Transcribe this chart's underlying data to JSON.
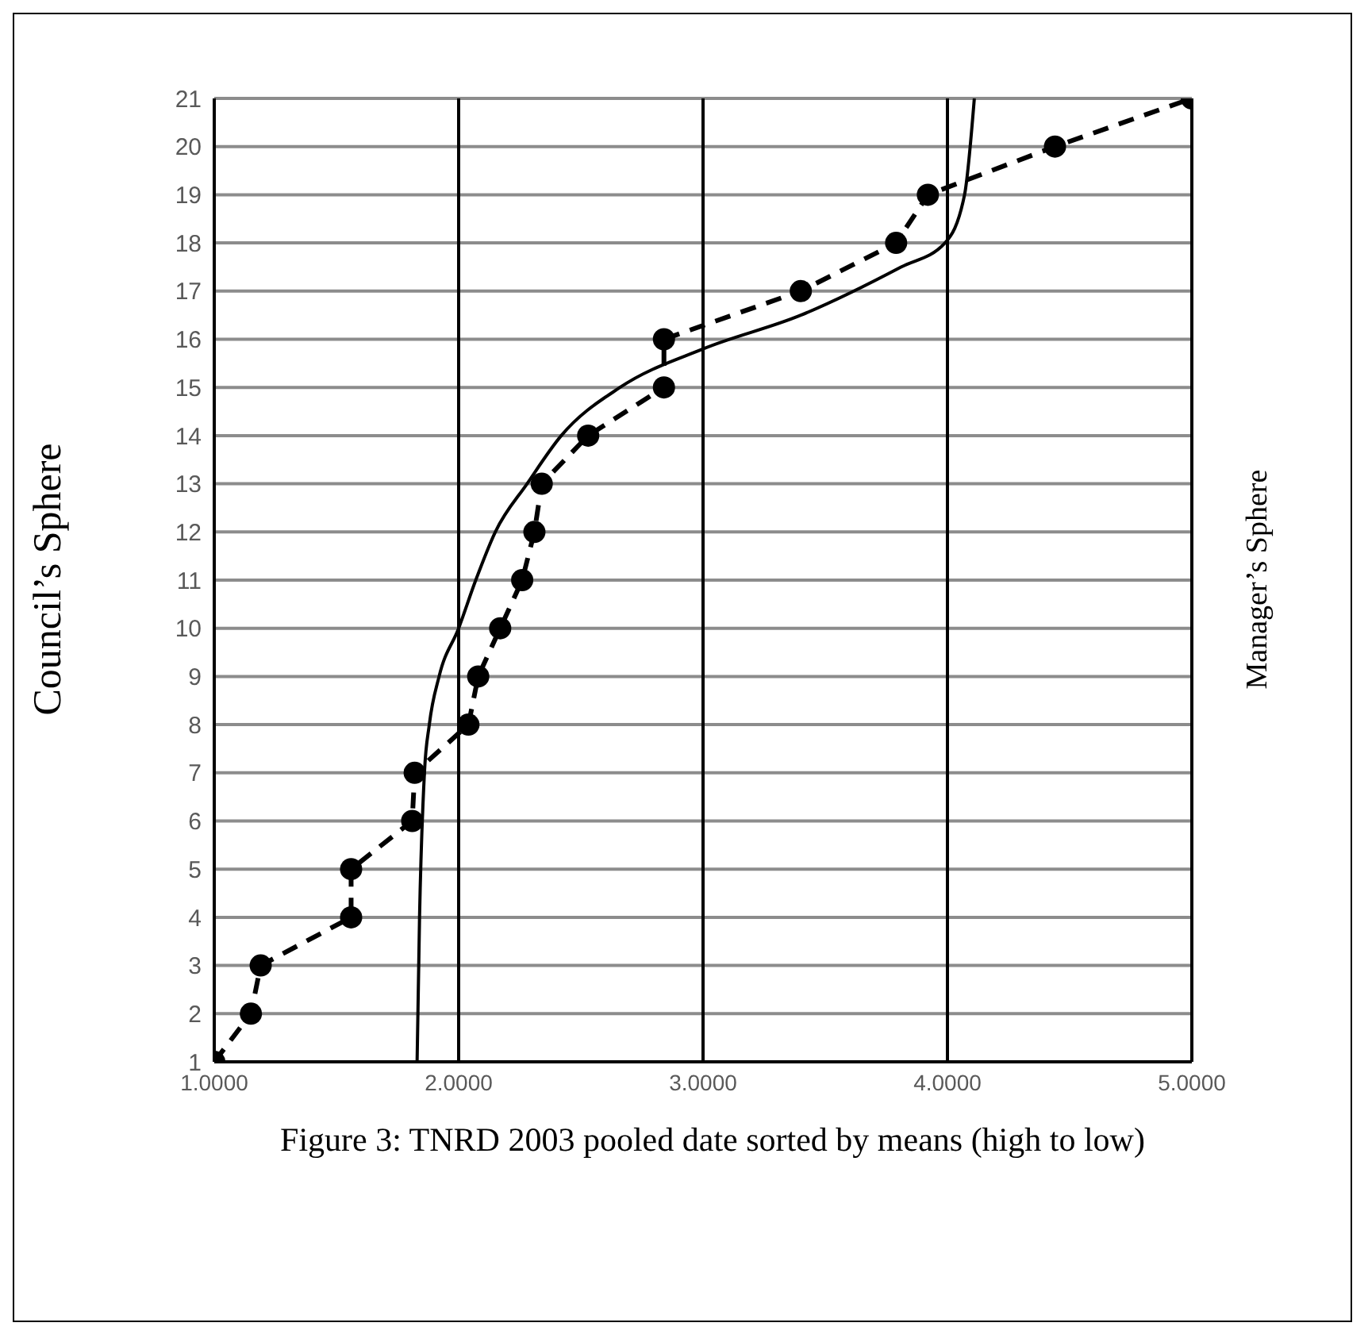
{
  "chart_data": {
    "type": "line",
    "title": "Figure 3: TNRD 2003 pooled date sorted by means (high to low)",
    "ylabel": "Council’s Sphere",
    "y2label": "Manager’s Sphere",
    "xlim": [
      1,
      5
    ],
    "xticks": [
      {
        "value": 1,
        "label": "1.0000"
      },
      {
        "value": 2,
        "label": "2.0000"
      },
      {
        "value": 3,
        "label": "3.0000"
      },
      {
        "value": 4,
        "label": "4.0000"
      },
      {
        "value": 5,
        "label": "5.0000"
      }
    ],
    "ylim": [
      1,
      21
    ],
    "yticks": [
      1,
      2,
      3,
      4,
      5,
      6,
      7,
      8,
      9,
      10,
      11,
      12,
      13,
      14,
      15,
      16,
      17,
      18,
      19,
      20,
      21
    ],
    "grid": true,
    "series": [
      {
        "color": "#000000",
        "marker": "circle",
        "line_style": "dashed",
        "x": [
          1.0,
          1.15,
          1.19,
          1.56,
          1.56,
          1.81,
          1.82,
          2.04,
          2.08,
          2.17,
          2.26,
          2.31,
          2.34,
          2.53,
          2.84,
          2.84,
          3.4,
          3.79,
          3.92,
          4.44,
          5.0
        ],
        "values": [
          1,
          2,
          3,
          4,
          5,
          6,
          7,
          8,
          9,
          10,
          11,
          12,
          13,
          14,
          15,
          16,
          17,
          18,
          19,
          20,
          21
        ]
      },
      {
        "color": "#000000",
        "marker": "none",
        "line_style": "solid",
        "x": [
          1.83,
          1.84,
          1.86,
          1.88,
          1.92,
          2.0,
          2.07,
          2.15,
          2.28,
          2.42,
          2.66,
          3.0,
          3.4,
          3.81,
          3.99,
          4.07,
          4.11
        ],
        "values": [
          1,
          4,
          7,
          8,
          9,
          10,
          11,
          12,
          13,
          14,
          15,
          15.8,
          16.5,
          17.5,
          18,
          19,
          21
        ]
      }
    ]
  }
}
